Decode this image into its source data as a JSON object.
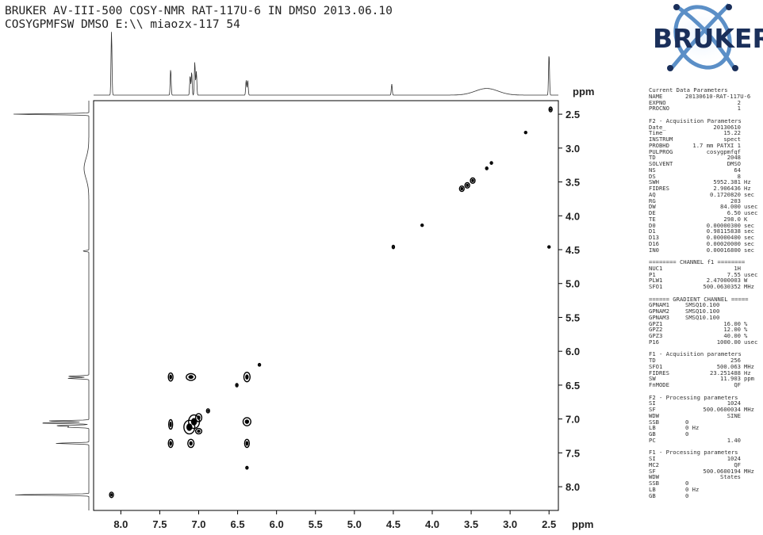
{
  "header": {
    "line1": "BRUKER AV-III-500 COSY-NMR RAT-117U-6 IN DMSO 2013.06.10",
    "line2": "COSYGPMFSW DMSO E:\\\\ miaozx-117 54"
  },
  "logo": {
    "text": "BRUKER",
    "colors": {
      "ring": "#5b8fc7",
      "text": "#1a2f5a",
      "glow": "#7fb0e0"
    }
  },
  "chart_data": {
    "type": "scatter",
    "title": "",
    "xlabel": "ppm",
    "ylabel": "ppm",
    "xlim": [
      8.35,
      2.38
    ],
    "ylim": [
      2.3,
      8.35
    ],
    "x_ticks": [
      "8.0",
      "7.5",
      "7.0",
      "6.5",
      "6.0",
      "5.5",
      "5.0",
      "4.5",
      "4.0",
      "3.5",
      "3.0",
      "2.5"
    ],
    "y_ticks": [
      "2.5",
      "3.0",
      "3.5",
      "4.0",
      "4.5",
      "5.0",
      "5.5",
      "6.0",
      "6.5",
      "7.0",
      "7.5",
      "8.0"
    ],
    "diagonal_peaks": [
      {
        "x": 8.12,
        "y": 8.12,
        "rx": 0.025,
        "ry": 0.04
      },
      {
        "x": 7.36,
        "y": 7.36,
        "rx": 0.03,
        "ry": 0.06
      },
      {
        "x": 7.12,
        "y": 7.12,
        "rx": 0.07,
        "ry": 0.1
      },
      {
        "x": 7.06,
        "y": 7.04,
        "rx": 0.07,
        "ry": 0.1
      },
      {
        "x": 7.0,
        "y": 6.98,
        "rx": 0.04,
        "ry": 0.06
      },
      {
        "x": 6.88,
        "y": 6.88,
        "rx": 0.02,
        "ry": 0.03
      },
      {
        "x": 6.38,
        "y": 6.38,
        "rx": 0.04,
        "ry": 0.07
      },
      {
        "x": 6.51,
        "y": 6.5,
        "rx": 0.015,
        "ry": 0.025
      },
      {
        "x": 6.22,
        "y": 6.2,
        "rx": 0.012,
        "ry": 0.02
      },
      {
        "x": 4.5,
        "y": 4.46,
        "rx": 0.012,
        "ry": 0.025
      },
      {
        "x": 4.13,
        "y": 4.14,
        "rx": 0.005,
        "ry": 0.008
      },
      {
        "x": 3.62,
        "y": 3.6,
        "rx": 0.03,
        "ry": 0.04
      },
      {
        "x": 3.55,
        "y": 3.55,
        "rx": 0.03,
        "ry": 0.04
      },
      {
        "x": 3.48,
        "y": 3.48,
        "rx": 0.03,
        "ry": 0.04
      },
      {
        "x": 3.3,
        "y": 3.3,
        "rx": 0.01,
        "ry": 0.02
      },
      {
        "x": 3.24,
        "y": 3.22,
        "rx": 0.01,
        "ry": 0.02
      },
      {
        "x": 2.8,
        "y": 2.77,
        "rx": 0.01,
        "ry": 0.015
      },
      {
        "x": 2.48,
        "y": 2.43,
        "rx": 0.02,
        "ry": 0.035
      },
      {
        "x": 2.5,
        "y": 4.46,
        "rx": 0.008,
        "ry": 0.015
      }
    ],
    "cross_peaks": [
      {
        "x": 7.36,
        "y": 6.38,
        "rx": 0.03,
        "ry": 0.06
      },
      {
        "x": 6.38,
        "y": 7.36,
        "rx": 0.03,
        "ry": 0.06
      },
      {
        "x": 7.1,
        "y": 6.38,
        "rx": 0.06,
        "ry": 0.05
      },
      {
        "x": 6.38,
        "y": 7.04,
        "rx": 0.05,
        "ry": 0.06
      },
      {
        "x": 7.36,
        "y": 7.08,
        "rx": 0.025,
        "ry": 0.07
      },
      {
        "x": 7.1,
        "y": 7.36,
        "rx": 0.04,
        "ry": 0.06
      },
      {
        "x": 7.0,
        "y": 7.18,
        "rx": 0.04,
        "ry": 0.04
      },
      {
        "x": 6.38,
        "y": 7.72,
        "rx": 0.01,
        "ry": 0.02
      }
    ],
    "f2_projection_peaks": [
      {
        "x": 8.12,
        "h": 1.15
      },
      {
        "x": 7.36,
        "h": 0.47
      },
      {
        "x": 7.11,
        "h": 0.35
      },
      {
        "x": 7.09,
        "h": 0.42
      },
      {
        "x": 7.05,
        "h": 0.6
      },
      {
        "x": 7.03,
        "h": 0.43
      },
      {
        "x": 6.39,
        "h": 0.27
      },
      {
        "x": 6.37,
        "h": 0.27
      },
      {
        "x": 4.52,
        "h": 0.2
      },
      {
        "x": 2.5,
        "h": 0.75
      }
    ],
    "f2_broad": [
      {
        "x": 3.3,
        "h": 0.12,
        "w": 0.35
      }
    ],
    "f1_projection_peaks": [
      {
        "y": 2.5,
        "h": 1.6
      },
      {
        "y": 4.52,
        "h": 0.12
      },
      {
        "y": 6.37,
        "h": 0.45
      },
      {
        "y": 6.4,
        "h": 0.45
      },
      {
        "y": 7.03,
        "h": 0.88
      },
      {
        "y": 7.06,
        "h": 1.05
      },
      {
        "y": 7.1,
        "h": 0.7
      },
      {
        "y": 7.12,
        "h": 0.45
      },
      {
        "y": 7.36,
        "h": 0.7
      },
      {
        "y": 8.12,
        "h": 1.6
      }
    ],
    "f1_broad": [
      {
        "y": 3.3,
        "h": 0.1,
        "w": 0.35
      }
    ]
  },
  "params": [
    {
      "t": "title",
      "text": "Current Data Parameters"
    },
    {
      "k": "NAME",
      "v": "20130610-RAT-117U-6",
      "u": ""
    },
    {
      "k": "EXPNO",
      "v": "2",
      "u": ""
    },
    {
      "k": "PROCNO",
      "v": "1",
      "u": ""
    },
    {
      "t": "gap"
    },
    {
      "t": "title",
      "text": "F2 - Acquisition Parameters"
    },
    {
      "k": "Date_",
      "v": "20130610",
      "u": ""
    },
    {
      "k": "Time",
      "v": "15.22",
      "u": ""
    },
    {
      "k": "INSTRUM",
      "v": "spect",
      "u": ""
    },
    {
      "k": "PROBHD",
      "v": "1.7 mm PATXI 1",
      "u": ""
    },
    {
      "k": "PULPROG",
      "v": "cosygpmfqf",
      "u": ""
    },
    {
      "k": "TD",
      "v": "2048",
      "u": ""
    },
    {
      "k": "SOLVENT",
      "v": "DMSO",
      "u": ""
    },
    {
      "k": "NS",
      "v": "64",
      "u": ""
    },
    {
      "k": "DS",
      "v": "8",
      "u": ""
    },
    {
      "k": "SWH",
      "v": "5952.381",
      "u": "Hz"
    },
    {
      "k": "FIDRES",
      "v": "2.906436",
      "u": "Hz"
    },
    {
      "k": "AQ",
      "v": "0.1720820",
      "u": "sec"
    },
    {
      "k": "RG",
      "v": "203",
      "u": ""
    },
    {
      "k": "DW",
      "v": "84.000",
      "u": "usec"
    },
    {
      "k": "DE",
      "v": "6.50",
      "u": "usec"
    },
    {
      "k": "TE",
      "v": "298.0",
      "u": "K"
    },
    {
      "k": "D0",
      "v": "0.00000300",
      "u": "sec"
    },
    {
      "k": "D1",
      "v": "0.98115838",
      "u": "sec"
    },
    {
      "k": "D13",
      "v": "0.00000400",
      "u": "sec"
    },
    {
      "k": "D16",
      "v": "0.00020000",
      "u": "sec"
    },
    {
      "k": "IN0",
      "v": "0.00016800",
      "u": "sec"
    },
    {
      "t": "gap"
    },
    {
      "t": "title",
      "text": "======== CHANNEL f1 ========"
    },
    {
      "k": "NUC1",
      "v": "1H",
      "u": ""
    },
    {
      "k": "P1",
      "v": "7.55",
      "u": "usec"
    },
    {
      "k": "PLW1",
      "v": "2.47000003",
      "u": "W"
    },
    {
      "k": "SFO1",
      "v": "500.0630352",
      "u": "MHz"
    },
    {
      "t": "gap"
    },
    {
      "t": "title",
      "text": "====== GRADIENT CHANNEL ====="
    },
    {
      "k": "GPNAM1",
      "v": "SMSQ10.100",
      "u": "",
      "left": true
    },
    {
      "k": "GPNAM2",
      "v": "SMSQ10.100",
      "u": "",
      "left": true
    },
    {
      "k": "GPNAM3",
      "v": "SMSQ10.100",
      "u": "",
      "left": true
    },
    {
      "k": "GPZ1",
      "v": "16.00",
      "u": "%"
    },
    {
      "k": "GPZ2",
      "v": "12.00",
      "u": "%"
    },
    {
      "k": "GPZ3",
      "v": "40.00",
      "u": "%"
    },
    {
      "k": "P16",
      "v": "1000.00",
      "u": "usec"
    },
    {
      "t": "gap"
    },
    {
      "t": "title",
      "text": "F1 - Acquisition parameters"
    },
    {
      "k": "TD",
      "v": "256",
      "u": ""
    },
    {
      "k": "SFO1",
      "v": "500.063",
      "u": "MHz"
    },
    {
      "k": "FIDRES",
      "v": "23.251488",
      "u": "Hz"
    },
    {
      "k": "SW",
      "v": "11.903",
      "u": "ppm"
    },
    {
      "k": "FnMODE",
      "v": "QF",
      "u": ""
    },
    {
      "t": "gap"
    },
    {
      "t": "title",
      "text": "F2 - Processing parameters"
    },
    {
      "k": "SI",
      "v": "1024",
      "u": ""
    },
    {
      "k": "SF",
      "v": "500.0600034",
      "u": "MHz"
    },
    {
      "k": "WDW",
      "v": "SINE",
      "u": ""
    },
    {
      "k": "SSB",
      "v": "0",
      "u": "",
      "left": true
    },
    {
      "k": "LB",
      "v": "0 Hz",
      "u": "",
      "left": true
    },
    {
      "k": "GB",
      "v": "0",
      "u": "",
      "left": true
    },
    {
      "k": "PC",
      "v": "1.40",
      "u": ""
    },
    {
      "t": "gap"
    },
    {
      "t": "title",
      "text": "F1 - Processing parameters"
    },
    {
      "k": "SI",
      "v": "1024",
      "u": ""
    },
    {
      "k": "MC2",
      "v": "QF",
      "u": ""
    },
    {
      "k": "SF",
      "v": "500.0600194",
      "u": "MHz"
    },
    {
      "k": "WDW",
      "v": "States",
      "u": ""
    },
    {
      "k": "SSB",
      "v": "0",
      "u": "",
      "left": true
    },
    {
      "k": "LB",
      "v": "0 Hz",
      "u": "",
      "left": true
    },
    {
      "k": "GB",
      "v": "0",
      "u": "",
      "left": true
    }
  ]
}
